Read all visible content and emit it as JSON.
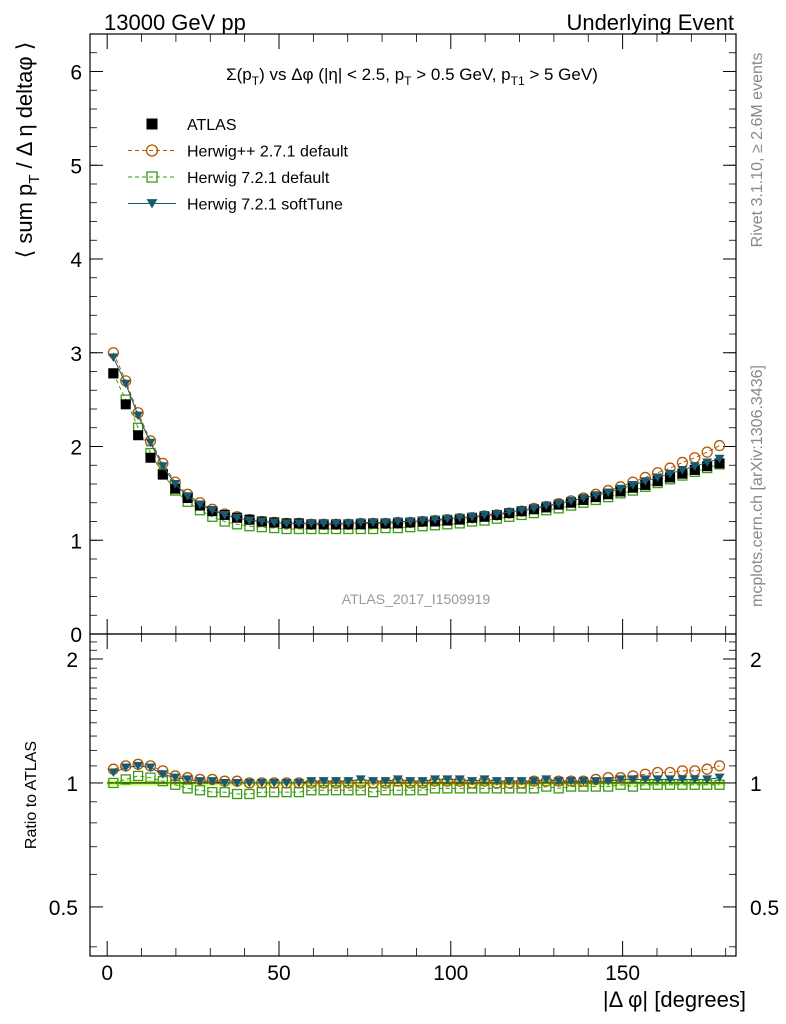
{
  "header": {
    "left": "13000 GeV pp",
    "right": "Underlying Event"
  },
  "side": {
    "rivet": "Rivet 3.1.10, ≥ 2.6M events",
    "mcplots": "mcplots.cern.ch [arXiv:1306.3436]"
  },
  "analysis_id": "ATLAS_2017_I1509919",
  "chart_data": [
    {
      "type": "scatter",
      "title": "Σ(pT) vs Δφ (|η| < 2.5, pT > 0.5 GeV, pT1 > 5 GeV)",
      "xlabel": "|Δ φ| [degrees]",
      "ylabel": "⟨ sum pT / Δ η deltaφ ⟩",
      "xlim": [
        -5,
        183
      ],
      "ylim": [
        0,
        6.4
      ],
      "yticks": [
        0,
        1,
        2,
        3,
        4,
        5,
        6
      ],
      "xticks": [
        0,
        50,
        100,
        150
      ],
      "legend_position": "top-left",
      "x": [
        1.8,
        5.4,
        9.0,
        12.6,
        16.2,
        19.8,
        23.4,
        27.0,
        30.6,
        34.2,
        37.8,
        41.4,
        45.0,
        48.6,
        52.2,
        55.8,
        59.4,
        63.0,
        66.6,
        70.2,
        73.8,
        77.4,
        81.0,
        84.6,
        88.2,
        91.8,
        95.4,
        99.0,
        102.6,
        106.2,
        109.8,
        113.4,
        117.0,
        120.6,
        124.2,
        127.8,
        131.4,
        135.0,
        138.6,
        142.2,
        145.8,
        149.4,
        153.0,
        156.6,
        160.2,
        163.8,
        167.4,
        171.0,
        174.6,
        178.2
      ],
      "series": [
        {
          "name": "ATLAS",
          "color": "#000000",
          "marker": "filled-square",
          "values": [
            2.78,
            2.45,
            2.12,
            1.88,
            1.7,
            1.55,
            1.45,
            1.37,
            1.31,
            1.27,
            1.24,
            1.22,
            1.2,
            1.19,
            1.18,
            1.18,
            1.17,
            1.17,
            1.17,
            1.17,
            1.17,
            1.18,
            1.18,
            1.18,
            1.19,
            1.2,
            1.2,
            1.21,
            1.22,
            1.24,
            1.25,
            1.27,
            1.29,
            1.31,
            1.33,
            1.35,
            1.38,
            1.4,
            1.43,
            1.46,
            1.49,
            1.52,
            1.56,
            1.59,
            1.63,
            1.67,
            1.71,
            1.75,
            1.79,
            1.82
          ]
        },
        {
          "name": "Herwig++ 2.7.1 default",
          "color": "#b35900",
          "marker": "open-circle",
          "values": [
            3.0,
            2.7,
            2.36,
            2.06,
            1.82,
            1.62,
            1.49,
            1.4,
            1.33,
            1.28,
            1.25,
            1.22,
            1.2,
            1.19,
            1.18,
            1.18,
            1.17,
            1.17,
            1.17,
            1.17,
            1.18,
            1.18,
            1.18,
            1.19,
            1.19,
            1.2,
            1.21,
            1.22,
            1.23,
            1.24,
            1.26,
            1.27,
            1.29,
            1.31,
            1.34,
            1.36,
            1.39,
            1.42,
            1.45,
            1.49,
            1.53,
            1.57,
            1.62,
            1.67,
            1.72,
            1.77,
            1.83,
            1.88,
            1.94,
            2.01
          ]
        },
        {
          "name": "Herwig 7.2.1 default",
          "color": "#3a9c12",
          "marker": "open-square",
          "values": [
            2.78,
            2.5,
            2.2,
            1.93,
            1.71,
            1.53,
            1.41,
            1.32,
            1.25,
            1.2,
            1.17,
            1.15,
            1.14,
            1.13,
            1.12,
            1.12,
            1.12,
            1.12,
            1.12,
            1.12,
            1.12,
            1.12,
            1.13,
            1.13,
            1.14,
            1.15,
            1.16,
            1.17,
            1.18,
            1.2,
            1.21,
            1.23,
            1.25,
            1.27,
            1.29,
            1.32,
            1.34,
            1.37,
            1.4,
            1.43,
            1.46,
            1.5,
            1.53,
            1.57,
            1.61,
            1.65,
            1.69,
            1.73,
            1.77,
            1.81
          ]
        },
        {
          "name": "Herwig 7.2.1 softTune",
          "color": "#1b5a6e",
          "marker": "filled-triangle-down",
          "values": [
            2.95,
            2.67,
            2.33,
            2.04,
            1.79,
            1.6,
            1.47,
            1.38,
            1.32,
            1.27,
            1.24,
            1.21,
            1.2,
            1.19,
            1.18,
            1.18,
            1.18,
            1.18,
            1.18,
            1.18,
            1.19,
            1.19,
            1.19,
            1.2,
            1.2,
            1.21,
            1.22,
            1.23,
            1.24,
            1.25,
            1.27,
            1.28,
            1.3,
            1.32,
            1.34,
            1.37,
            1.39,
            1.42,
            1.45,
            1.48,
            1.51,
            1.55,
            1.59,
            1.63,
            1.67,
            1.71,
            1.75,
            1.79,
            1.83,
            1.87
          ]
        }
      ]
    },
    {
      "type": "scatter",
      "title": "",
      "xlabel": "|Δ φ| [degrees]",
      "ylabel": "Ratio to ATLAS",
      "xlim": [
        -5,
        183
      ],
      "ylim": [
        0.38,
        2.3
      ],
      "ytick_labels": [
        "0.5",
        "1",
        "2"
      ],
      "yticks": [
        0.5,
        1,
        2
      ],
      "x": [
        1.8,
        5.4,
        9.0,
        12.6,
        16.2,
        19.8,
        23.4,
        27.0,
        30.6,
        34.2,
        37.8,
        41.4,
        45.0,
        48.6,
        52.2,
        55.8,
        59.4,
        63.0,
        66.6,
        70.2,
        73.8,
        77.4,
        81.0,
        84.6,
        88.2,
        91.8,
        95.4,
        99.0,
        102.6,
        106.2,
        109.8,
        113.4,
        117.0,
        120.6,
        124.2,
        127.8,
        131.4,
        135.0,
        138.6,
        142.2,
        145.8,
        149.4,
        153.0,
        156.6,
        160.2,
        163.8,
        167.4,
        171.0,
        174.6,
        178.2
      ],
      "band": {
        "color": "#ccff66",
        "lo": 0.985,
        "hi": 1.015
      },
      "series": [
        {
          "name": "Herwig++ 2.7.1 default",
          "color": "#b35900",
          "marker": "open-circle",
          "values": [
            1.08,
            1.1,
            1.11,
            1.1,
            1.07,
            1.04,
            1.03,
            1.02,
            1.02,
            1.01,
            1.01,
            1.0,
            1.0,
            1.0,
            1.0,
            1.0,
            1.0,
            1.0,
            1.0,
            1.0,
            1.0,
            1.0,
            1.0,
            1.01,
            1.0,
            1.0,
            1.01,
            1.01,
            1.01,
            1.0,
            1.01,
            1.0,
            1.0,
            1.0,
            1.01,
            1.01,
            1.01,
            1.01,
            1.01,
            1.02,
            1.03,
            1.03,
            1.04,
            1.05,
            1.06,
            1.06,
            1.07,
            1.07,
            1.08,
            1.1
          ]
        },
        {
          "name": "Herwig 7.2.1 default",
          "color": "#3a9c12",
          "marker": "open-square",
          "values": [
            1.0,
            1.02,
            1.04,
            1.03,
            1.01,
            0.99,
            0.97,
            0.96,
            0.95,
            0.95,
            0.94,
            0.94,
            0.95,
            0.95,
            0.95,
            0.95,
            0.96,
            0.96,
            0.96,
            0.96,
            0.96,
            0.95,
            0.96,
            0.96,
            0.96,
            0.96,
            0.97,
            0.97,
            0.97,
            0.97,
            0.97,
            0.97,
            0.97,
            0.97,
            0.97,
            0.98,
            0.97,
            0.98,
            0.98,
            0.98,
            0.98,
            0.99,
            0.98,
            0.99,
            0.99,
            0.99,
            0.99,
            0.99,
            0.99,
            0.99
          ]
        },
        {
          "name": "Herwig 7.2.1 softTune",
          "color": "#1b5a6e",
          "marker": "filled-triangle-down",
          "values": [
            1.06,
            1.09,
            1.1,
            1.09,
            1.05,
            1.03,
            1.02,
            1.01,
            1.01,
            1.0,
            1.0,
            1.0,
            1.0,
            1.0,
            1.0,
            1.0,
            1.01,
            1.01,
            1.01,
            1.01,
            1.02,
            1.01,
            1.01,
            1.02,
            1.01,
            1.01,
            1.02,
            1.02,
            1.02,
            1.01,
            1.02,
            1.01,
            1.01,
            1.01,
            1.01,
            1.02,
            1.01,
            1.01,
            1.01,
            1.01,
            1.01,
            1.02,
            1.02,
            1.02,
            1.02,
            1.02,
            1.02,
            1.02,
            1.02,
            1.03
          ]
        }
      ]
    }
  ]
}
